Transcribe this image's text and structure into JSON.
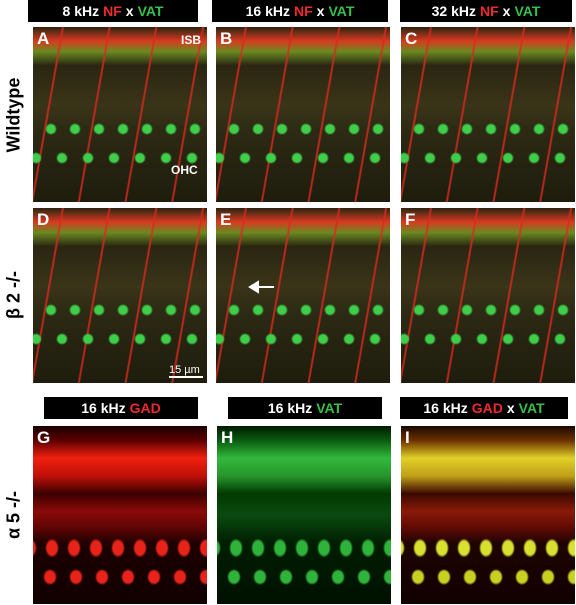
{
  "column_headers": [
    [
      "8 kHz",
      "NF",
      "x",
      "VAT"
    ],
    [
      "16 kHz",
      "NF",
      "x",
      "VAT"
    ],
    [
      "32 kHz",
      "NF",
      "x",
      "VAT"
    ]
  ],
  "lower_headers": [
    [
      "16 kHz",
      "GAD"
    ],
    [
      "16 kHz",
      "VAT"
    ],
    [
      "16 kHz",
      "GAD",
      "x",
      "VAT"
    ]
  ],
  "row_labels": [
    "Wildtype",
    "β 2 -/-",
    "α 5 -/-"
  ],
  "panels": [
    "A",
    "B",
    "C",
    "D",
    "E",
    "F",
    "G",
    "H",
    "I"
  ],
  "annotations": {
    "isb": "ISB",
    "ohc": "OHC",
    "scale_bar": "15 µm"
  }
}
